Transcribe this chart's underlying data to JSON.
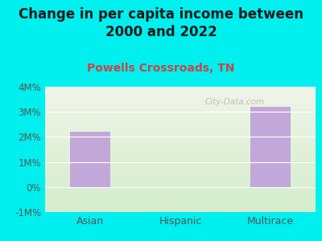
{
  "title": "Change in per capita income between\n2000 and 2022",
  "subtitle": "Powells Crossroads, TN",
  "categories": [
    "Asian",
    "Hispanic",
    "Multirace"
  ],
  "values": [
    2200000,
    0,
    3200000
  ],
  "bar_color": "#c2a8d8",
  "background_color": "#00efef",
  "plot_bg_top": "#f0f5e8",
  "plot_bg_bottom": "#d4edcc",
  "title_fontsize": 12,
  "subtitle_fontsize": 10,
  "subtitle_color": "#cc4444",
  "title_color": "#1a1a1a",
  "tick_label_color": "#555555",
  "ylim": [
    -1000000,
    4000000
  ],
  "yticks": [
    -1000000,
    0,
    1000000,
    2000000,
    3000000,
    4000000
  ],
  "ytick_labels": [
    "-1M%",
    "0%",
    "1M%",
    "2M%",
    "3M%",
    "4M%"
  ],
  "watermark": "City-Data.com",
  "bar_width": 0.45
}
